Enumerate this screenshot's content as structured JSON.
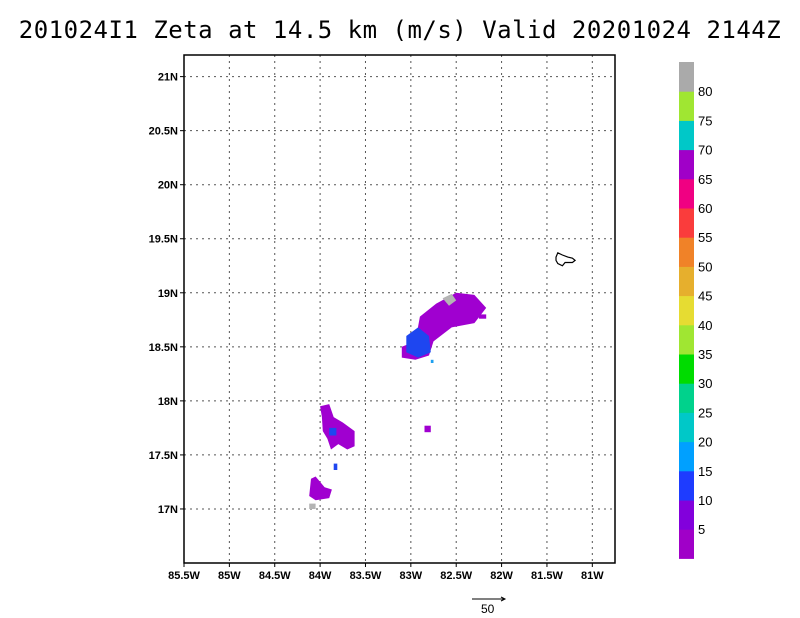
{
  "title": "201024I1 Zeta at 14.5 km (m/s) Valid 20201024 2144Z",
  "map": {
    "lon_range": [
      -85.5,
      -80.75
    ],
    "lat_range": [
      16.5,
      21.2
    ],
    "lon_ticks": [
      {
        "value": -85.5,
        "label": "85.5W"
      },
      {
        "value": -85,
        "label": "85W"
      },
      {
        "value": -84.5,
        "label": "84.5W"
      },
      {
        "value": -84,
        "label": "84W"
      },
      {
        "value": -83.5,
        "label": "83.5W"
      },
      {
        "value": -83,
        "label": "83W"
      },
      {
        "value": -82.5,
        "label": "82.5W"
      },
      {
        "value": -82,
        "label": "82W"
      },
      {
        "value": -81.5,
        "label": "81.5W"
      },
      {
        "value": -81,
        "label": "81W"
      }
    ],
    "lat_ticks": [
      {
        "value": 17,
        "label": "17N"
      },
      {
        "value": 17.5,
        "label": "17.5N"
      },
      {
        "value": 18,
        "label": "18N"
      },
      {
        "value": 18.5,
        "label": "18.5N"
      },
      {
        "value": 19,
        "label": "19N"
      },
      {
        "value": 19.5,
        "label": "19.5N"
      },
      {
        "value": 20,
        "label": "20N"
      },
      {
        "value": 20.5,
        "label": "20.5N"
      },
      {
        "value": 21,
        "label": "21N"
      }
    ],
    "grid": "dotted",
    "colors": {
      "purple": "#a000d0",
      "violet": "#8a00e0",
      "blue": "#1e46f0",
      "gray": "#b4b4b4",
      "sky": "#1ea0f0"
    },
    "island_outline": [
      [
        -81.4,
        19.33
      ],
      [
        -81.38,
        19.37
      ],
      [
        -81.33,
        19.35
      ],
      [
        -81.27,
        19.33
      ],
      [
        -81.22,
        19.32
      ],
      [
        -81.19,
        19.3
      ],
      [
        -81.22,
        19.28
      ],
      [
        -81.3,
        19.28
      ],
      [
        -81.33,
        19.25
      ],
      [
        -81.38,
        19.27
      ],
      [
        -81.4,
        19.3
      ]
    ],
    "blobs": [
      {
        "color": "purple",
        "coords": [
          [
            -82.95,
            18.55
          ],
          [
            -82.9,
            18.78
          ],
          [
            -82.72,
            18.9
          ],
          [
            -82.5,
            19.0
          ],
          [
            -82.3,
            18.98
          ],
          [
            -82.17,
            18.86
          ],
          [
            -82.3,
            18.72
          ],
          [
            -82.55,
            18.68
          ],
          [
            -82.75,
            18.55
          ],
          [
            -82.8,
            18.42
          ],
          [
            -82.95,
            18.38
          ],
          [
            -83.1,
            18.4
          ],
          [
            -83.1,
            18.5
          ]
        ]
      },
      {
        "color": "blue",
        "coords": [
          [
            -83.05,
            18.6
          ],
          [
            -82.92,
            18.68
          ],
          [
            -82.8,
            18.6
          ],
          [
            -82.78,
            18.45
          ],
          [
            -82.92,
            18.4
          ],
          [
            -83.05,
            18.45
          ]
        ]
      },
      {
        "color": "gray",
        "coords": [
          [
            -82.65,
            18.95
          ],
          [
            -82.55,
            18.99
          ],
          [
            -82.5,
            18.93
          ],
          [
            -82.58,
            18.88
          ]
        ]
      },
      {
        "color": "purple",
        "coords": [
          [
            -84.0,
            17.95
          ],
          [
            -83.9,
            17.97
          ],
          [
            -83.85,
            17.85
          ],
          [
            -83.75,
            17.8
          ],
          [
            -83.62,
            17.72
          ],
          [
            -83.62,
            17.58
          ],
          [
            -83.7,
            17.55
          ],
          [
            -83.8,
            17.6
          ],
          [
            -83.88,
            17.55
          ],
          [
            -83.92,
            17.65
          ],
          [
            -83.97,
            17.72
          ],
          [
            -83.98,
            17.85
          ]
        ]
      },
      {
        "color": "blue",
        "coords": [
          [
            -83.9,
            17.75
          ],
          [
            -83.82,
            17.75
          ],
          [
            -83.82,
            17.68
          ],
          [
            -83.9,
            17.68
          ]
        ]
      },
      {
        "color": "purple",
        "coords": [
          [
            -84.1,
            17.28
          ],
          [
            -84.05,
            17.3
          ],
          [
            -83.95,
            17.2
          ],
          [
            -83.87,
            17.18
          ],
          [
            -83.9,
            17.1
          ],
          [
            -84.05,
            17.08
          ],
          [
            -84.12,
            17.12
          ]
        ]
      },
      {
        "color": "gray",
        "coords": [
          [
            -84.12,
            17.05
          ],
          [
            -84.05,
            17.05
          ],
          [
            -84.05,
            17.0
          ],
          [
            -84.12,
            17.0
          ]
        ]
      },
      {
        "color": "purple",
        "coords": [
          [
            -82.85,
            17.77
          ],
          [
            -82.78,
            17.77
          ],
          [
            -82.78,
            17.71
          ],
          [
            -82.85,
            17.71
          ]
        ]
      },
      {
        "color": "purple",
        "coords": [
          [
            -82.25,
            18.8
          ],
          [
            -82.17,
            18.8
          ],
          [
            -82.17,
            18.76
          ],
          [
            -82.25,
            18.76
          ]
        ]
      },
      {
        "color": "blue",
        "coords": [
          [
            -83.85,
            17.42
          ],
          [
            -83.81,
            17.42
          ],
          [
            -83.81,
            17.36
          ],
          [
            -83.85,
            17.36
          ]
        ]
      },
      {
        "color": "sky",
        "coords": [
          [
            -82.78,
            18.38
          ],
          [
            -82.75,
            18.38
          ],
          [
            -82.75,
            18.35
          ],
          [
            -82.78,
            18.35
          ]
        ]
      }
    ]
  },
  "colorbar": {
    "bands": [
      {
        "color": "#a000c8"
      },
      {
        "color": "#8200dc"
      },
      {
        "color": "#1e3cff"
      },
      {
        "color": "#00a0ff"
      },
      {
        "color": "#00c8c8"
      },
      {
        "color": "#00d28c"
      },
      {
        "color": "#00dc00"
      },
      {
        "color": "#a0e632"
      },
      {
        "color": "#e6dc32"
      },
      {
        "color": "#e6af2d"
      },
      {
        "color": "#f08228"
      },
      {
        "color": "#fa3c3c"
      },
      {
        "color": "#f00082"
      },
      {
        "color": "#a000c8"
      },
      {
        "color": "#00c8c8"
      },
      {
        "color": "#a0e632"
      },
      {
        "color": "#aaaaaa"
      }
    ],
    "labels": [
      "5",
      "10",
      "15",
      "20",
      "25",
      "30",
      "35",
      "40",
      "45",
      "50",
      "55",
      "60",
      "65",
      "70",
      "75",
      "80"
    ]
  },
  "vector_legend": {
    "label": "50"
  }
}
